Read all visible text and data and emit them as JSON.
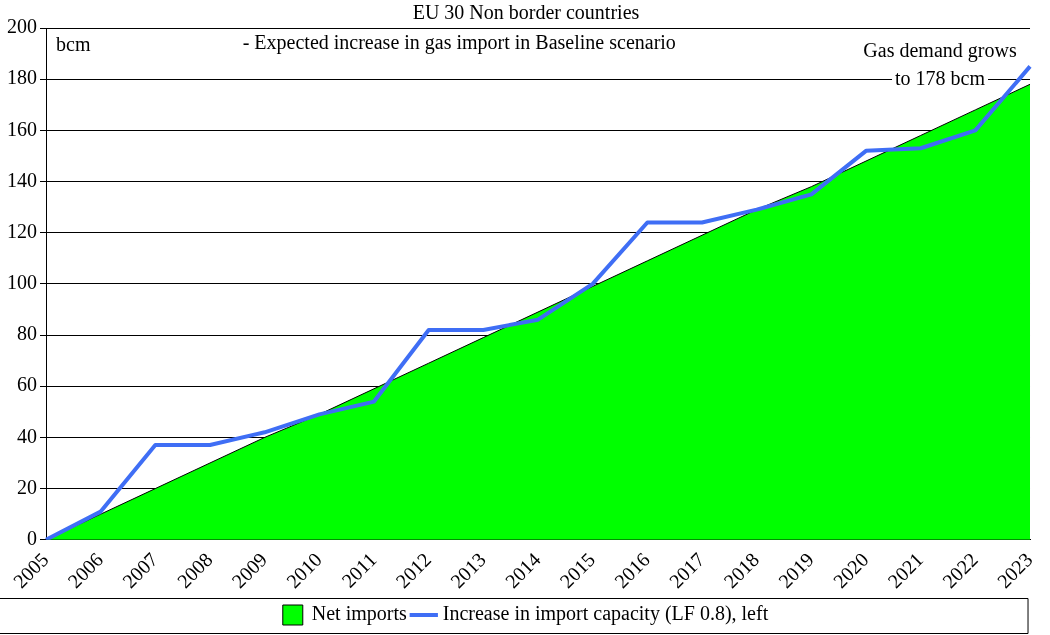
{
  "chart_data": {
    "type": "area",
    "title": "EU 30 Non border countries",
    "subtitle": "- Expected increase in gas import in Baseline scenario",
    "ylabel": "bcm",
    "annotations": [
      "Gas demand grows to 178 bcm"
    ],
    "categories": [
      "2005",
      "2006",
      "2007",
      "2008",
      "2009",
      "2010",
      "2011",
      "2012",
      "2013",
      "2014",
      "2015",
      "2016",
      "2017",
      "2018",
      "2019",
      "2020",
      "2021",
      "2022",
      "2023"
    ],
    "series": [
      {
        "name": "Net imports",
        "type": "area",
        "color": "#00ff00",
        "values": [
          0,
          10,
          20,
          30,
          40,
          49,
          59,
          69,
          79,
          89,
          99,
          109,
          119,
          129,
          138,
          148,
          158,
          168,
          178
        ]
      },
      {
        "name": "Increase in import capacity (LF 0.8), left",
        "type": "line",
        "color": "#3f6ef5",
        "values": [
          0,
          11,
          37,
          37,
          42,
          49,
          54,
          82,
          82,
          86,
          100,
          124,
          124,
          129,
          135,
          152,
          153,
          160,
          185
        ]
      }
    ],
    "ylim": [
      0,
      200
    ],
    "yticks": [
      0,
      20,
      40,
      60,
      80,
      100,
      120,
      140,
      160,
      180,
      200
    ],
    "grid": "y",
    "legend": "bottom",
    "marker": "none",
    "line_style": "solid"
  }
}
